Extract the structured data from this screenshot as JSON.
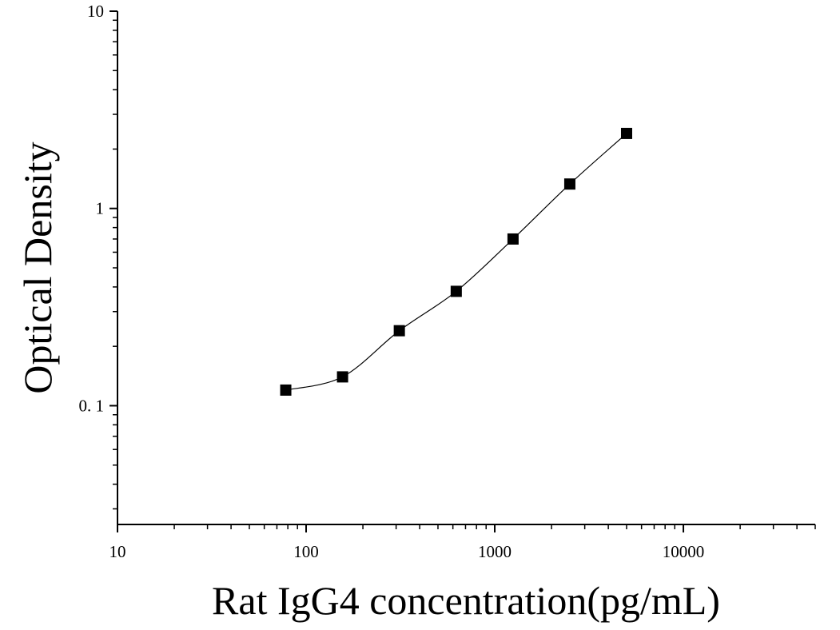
{
  "chart_data": {
    "type": "scatter",
    "title": "",
    "xlabel": "Rat IgG4 concentration(pg/mL)",
    "ylabel": "Optical Density",
    "x_scale": "log",
    "y_scale": "log",
    "xlim": [
      10,
      50000
    ],
    "ylim": [
      0.025,
      10
    ],
    "x_ticks": [
      10,
      100,
      1000,
      10000
    ],
    "x_tick_labels": [
      "10",
      "100",
      "1000",
      "10000"
    ],
    "y_ticks": [
      0.1,
      1,
      10
    ],
    "y_tick_labels": [
      "0. 1",
      "1",
      "10"
    ],
    "grid": false,
    "legend": "none",
    "series": [
      {
        "x": [
          78,
          156,
          312,
          625,
          1250,
          2500,
          5000
        ],
        "y": [
          0.12,
          0.14,
          0.24,
          0.38,
          0.7,
          1.33,
          2.4
        ]
      }
    ],
    "fit_curve": "smooth line through points",
    "colors": {
      "marker": "#000000",
      "line": "#000000",
      "axis": "#000000"
    }
  }
}
